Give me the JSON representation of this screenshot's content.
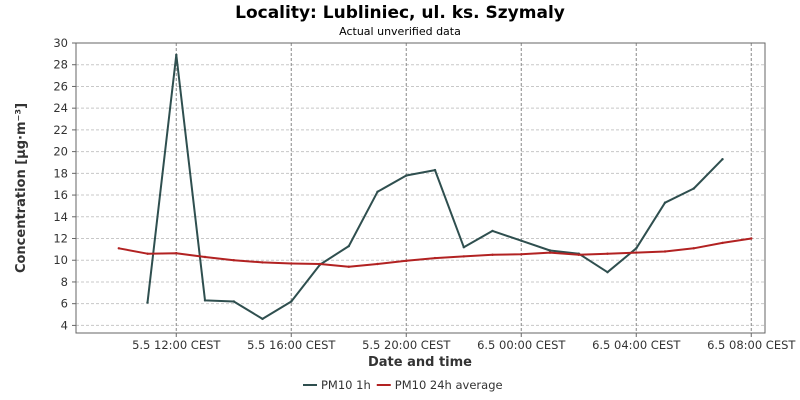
{
  "chart_data": {
    "type": "line",
    "title": "Locality: Lubliniec, ul. ks. Szymaly",
    "subtitle": "Actual unverified data",
    "xlabel": "Date and time",
    "ylabel": "Concentration [µg·m⁻³]",
    "ylim": [
      3.3,
      30
    ],
    "yticks": [
      4,
      6,
      8,
      10,
      12,
      14,
      16,
      18,
      20,
      22,
      24,
      26,
      28,
      30
    ],
    "x_start": "2024-05-05T09:00",
    "x_step_hours": 1,
    "xticks": [
      {
        "hour": 3,
        "label": "5.5 12:00 CEST"
      },
      {
        "hour": 7,
        "label": "5.5 16:00 CEST"
      },
      {
        "hour": 11,
        "label": "5.5 20:00 CEST"
      },
      {
        "hour": 15,
        "label": "6.5 00:00 CEST"
      },
      {
        "hour": 19,
        "label": "6.5 04:00 CEST"
      },
      {
        "hour": 23,
        "label": "6.5 08:00 CEST"
      }
    ],
    "grid": true,
    "legend_position": "bottom",
    "series": [
      {
        "name": "PM10 1h",
        "color": "#2f4f4f",
        "points": [
          [
            2,
            6.1
          ],
          [
            3,
            28.9
          ],
          [
            4,
            6.3
          ],
          [
            5,
            6.2
          ],
          [
            6,
            4.6
          ],
          [
            7,
            6.2
          ],
          [
            8,
            9.6
          ],
          [
            9,
            11.3
          ],
          [
            10,
            16.3
          ],
          [
            11,
            17.8
          ],
          [
            12,
            18.3
          ],
          [
            13,
            11.2
          ],
          [
            14,
            12.7
          ],
          [
            15,
            11.8
          ],
          [
            16,
            10.9
          ],
          [
            17,
            10.6
          ],
          [
            18,
            8.9
          ],
          [
            19,
            11.1
          ],
          [
            20,
            15.3
          ],
          [
            21,
            16.6
          ],
          [
            22,
            19.3
          ]
        ]
      },
      {
        "name": "PM10 24h average",
        "color": "#b22222",
        "points": [
          [
            1,
            11.1
          ],
          [
            2,
            10.6
          ],
          [
            3,
            10.65
          ],
          [
            4,
            10.3
          ],
          [
            5,
            10.0
          ],
          [
            6,
            9.8
          ],
          [
            7,
            9.7
          ],
          [
            8,
            9.65
          ],
          [
            9,
            9.4
          ],
          [
            10,
            9.65
          ],
          [
            11,
            9.95
          ],
          [
            12,
            10.2
          ],
          [
            13,
            10.35
          ],
          [
            14,
            10.5
          ],
          [
            15,
            10.55
          ],
          [
            16,
            10.7
          ],
          [
            17,
            10.5
          ],
          [
            18,
            10.6
          ],
          [
            19,
            10.7
          ],
          [
            20,
            10.8
          ],
          [
            21,
            11.1
          ],
          [
            22,
            11.6
          ],
          [
            23,
            12.0
          ]
        ]
      }
    ]
  }
}
